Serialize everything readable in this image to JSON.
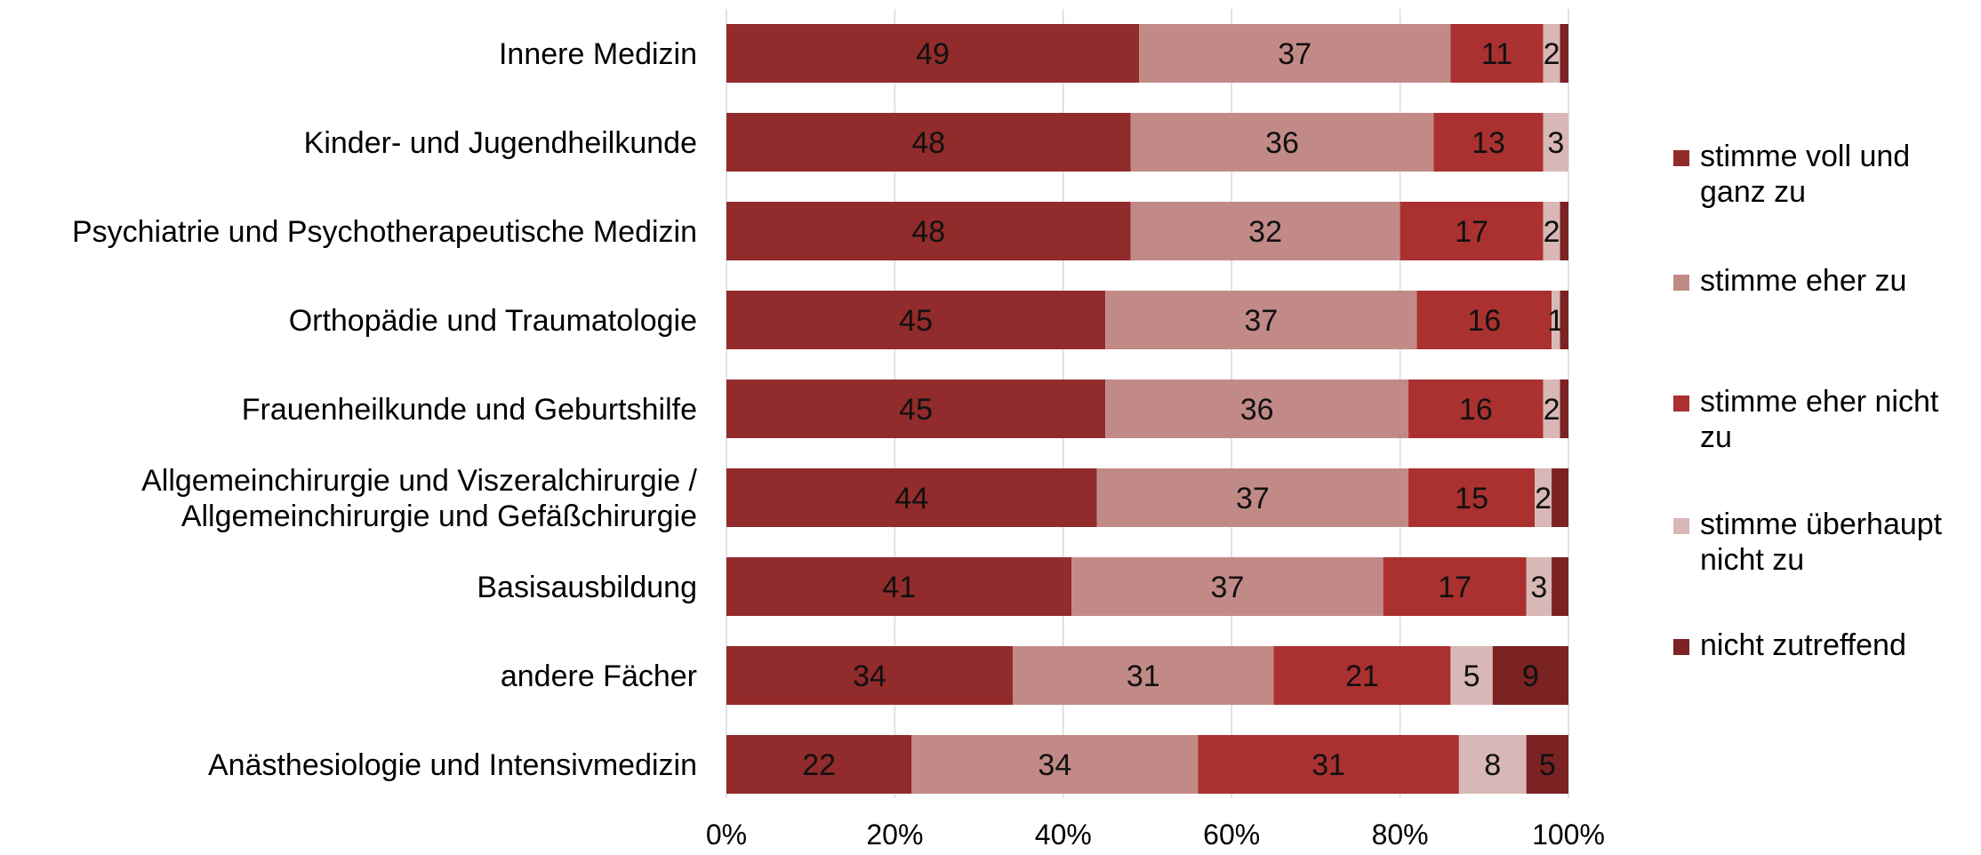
{
  "chart_data": {
    "type": "bar",
    "orientation": "horizontal",
    "stacked": true,
    "categories": [
      "Innere Medizin",
      "Kinder- und Jugendheilkunde",
      "Psychiatrie und Psychotherapeutische Medizin",
      "Orthopädie und Traumatologie",
      "Frauenheilkunde und Geburtshilfe",
      "Allgemeinchirurgie und Viszeralchirurgie / Allgemeinchirurgie und Gefäßchirurgie",
      "Basisausbildung",
      "andere Fächer",
      "Anästhesiologie und Intensivmedizin"
    ],
    "category_lines": [
      [
        "Innere Medizin"
      ],
      [
        "Kinder- und Jugendheilkunde"
      ],
      [
        "Psychiatrie und Psychotherapeutische Medizin"
      ],
      [
        "Orthopädie und Traumatologie"
      ],
      [
        "Frauenheilkunde und Geburtshilfe"
      ],
      [
        "Allgemeinchirurgie und Viszeralchirurgie /",
        "Allgemeinchirurgie und Gefäßchirurgie"
      ],
      [
        "Basisausbildung"
      ],
      [
        "andere Fächer"
      ],
      [
        "Anästhesiologie und Intensivmedizin"
      ]
    ],
    "series": [
      {
        "name": "stimme voll und ganz zu",
        "color": "#922B2B",
        "values": [
          49,
          48,
          48,
          45,
          45,
          44,
          41,
          34,
          22
        ],
        "labels": [
          "49",
          "48",
          "48",
          "45",
          "45",
          "44",
          "41",
          "34",
          "22"
        ]
      },
      {
        "name": "stimme eher zu",
        "color": "#C28A87",
        "values": [
          37,
          36,
          32,
          37,
          36,
          37,
          37,
          31,
          34
        ],
        "labels": [
          "37",
          "36",
          "32",
          "37",
          "36",
          "37",
          "37",
          "31",
          "34"
        ]
      },
      {
        "name": "stimme eher nicht zu",
        "color": "#AA3130",
        "values": [
          11,
          13,
          17,
          16,
          16,
          15,
          17,
          21,
          31
        ],
        "labels": [
          "11",
          "13",
          "17",
          "16",
          "16",
          "15",
          "17",
          "21",
          "31"
        ]
      },
      {
        "name": "stimme überhaupt nicht zu",
        "color": "#D8B8B6",
        "values": [
          2,
          3,
          2,
          1,
          2,
          2,
          3,
          5,
          8
        ],
        "labels": [
          "2",
          "3",
          "2",
          "1",
          "2",
          "2",
          "3",
          "5",
          "8"
        ]
      },
      {
        "name": "nicht zutreffend",
        "color": "#7B2222",
        "values": [
          1,
          0,
          1,
          1,
          1,
          2,
          2,
          9,
          5
        ],
        "labels": [
          "",
          "",
          "",
          "",
          "",
          "",
          "",
          "9",
          "5"
        ]
      }
    ],
    "x_ticks": [
      "0%",
      "20%",
      "40%",
      "60%",
      "80%",
      "100%"
    ],
    "xlim": [
      0,
      100
    ],
    "xlabel": "",
    "ylabel": "",
    "grid": "vertical",
    "legend_position": "right"
  }
}
